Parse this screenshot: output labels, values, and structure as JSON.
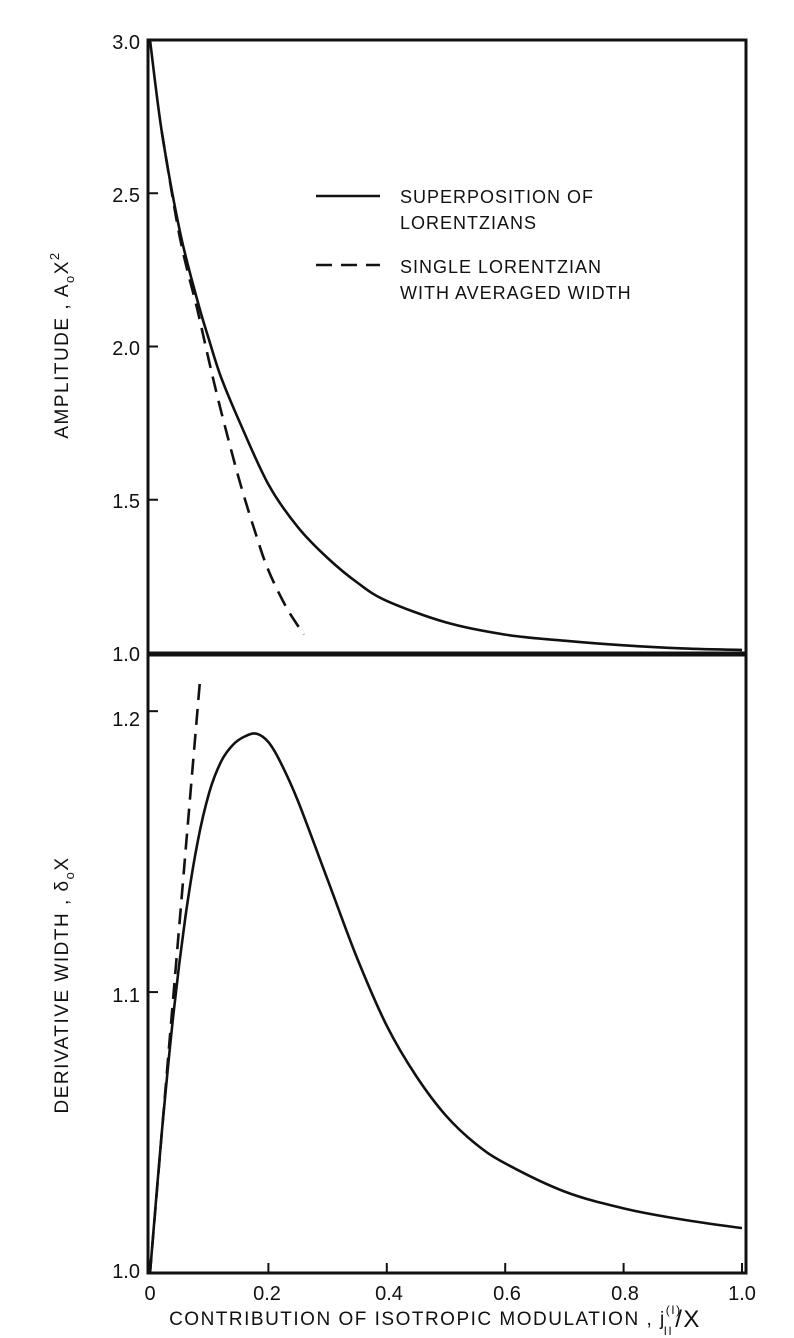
{
  "chart_data": [
    {
      "type": "line",
      "panel": "top",
      "ylabel": "AMPLITUDE , A",
      "ylabel_sub": "o",
      "ylabel_tail": "X",
      "ylabel_sup": "2",
      "xlim": [
        0,
        1.0
      ],
      "ylim": [
        1.0,
        3.0
      ],
      "y_ticks": [
        "1.0",
        "1.5",
        "2.0",
        "2.5",
        "3.0"
      ],
      "legend_position": "top-right",
      "legend": [
        {
          "style": "solid",
          "line1": "SUPERPOSITION  OF",
          "line2": "LORENTZIANS"
        },
        {
          "style": "dashed",
          "line1": "SINGLE  LORENTZIAN",
          "line2": "WITH  AVERAGED  WIDTH"
        }
      ],
      "series": [
        {
          "style": "solid",
          "x": [
            0,
            0.02,
            0.05,
            0.08,
            0.1,
            0.12,
            0.15,
            0.2,
            0.25,
            0.3,
            0.35,
            0.4,
            0.5,
            0.6,
            0.7,
            0.8,
            0.9,
            1.0
          ],
          "y": [
            3.0,
            2.7,
            2.38,
            2.15,
            2.02,
            1.9,
            1.76,
            1.55,
            1.41,
            1.31,
            1.23,
            1.17,
            1.1,
            1.06,
            1.04,
            1.025,
            1.015,
            1.01
          ]
        },
        {
          "style": "dashed",
          "x": [
            0.02,
            0.05,
            0.08,
            0.1,
            0.12,
            0.15,
            0.18,
            0.2,
            0.23,
            0.26
          ],
          "y": [
            2.7,
            2.36,
            2.12,
            1.95,
            1.79,
            1.57,
            1.38,
            1.27,
            1.15,
            1.06
          ]
        }
      ]
    },
    {
      "type": "line",
      "panel": "bottom",
      "ylabel": "DERIVATIVE   WIDTH ,  δ",
      "ylabel_sub": "o",
      "ylabel_tail": "X",
      "xlabel": "CONTRIBUTION  OF  ISOTROPIC  MODULATION ,  j",
      "xlabel_sup": "(I)",
      "xlabel_sub": "II",
      "xlabel_tail": "/X",
      "xlim": [
        0,
        1.0
      ],
      "ylim": [
        1.0,
        1.22
      ],
      "y_ticks": [
        "1.0",
        "1.1",
        "1.2"
      ],
      "x_ticks": [
        "0",
        "0.2",
        "0.4",
        "0.6",
        "0.8",
        "1.0"
      ],
      "series": [
        {
          "style": "solid",
          "x": [
            0,
            0.02,
            0.04,
            0.06,
            0.08,
            0.1,
            0.12,
            0.14,
            0.16,
            0.18,
            0.2,
            0.22,
            0.25,
            0.3,
            0.35,
            0.4,
            0.45,
            0.5,
            0.55,
            0.6,
            0.7,
            0.8,
            0.9,
            1.0
          ],
          "y": [
            1.0,
            1.05,
            1.093,
            1.127,
            1.153,
            1.171,
            1.182,
            1.188,
            1.191,
            1.192,
            1.189,
            1.182,
            1.168,
            1.14,
            1.112,
            1.088,
            1.07,
            1.056,
            1.046,
            1.039,
            1.029,
            1.023,
            1.019,
            1.016
          ]
        },
        {
          "style": "dashed",
          "x": [
            0,
            0.02,
            0.04,
            0.06,
            0.08,
            0.085
          ],
          "y": [
            1.0,
            1.05,
            1.1,
            1.15,
            1.2,
            1.212
          ]
        }
      ]
    }
  ]
}
